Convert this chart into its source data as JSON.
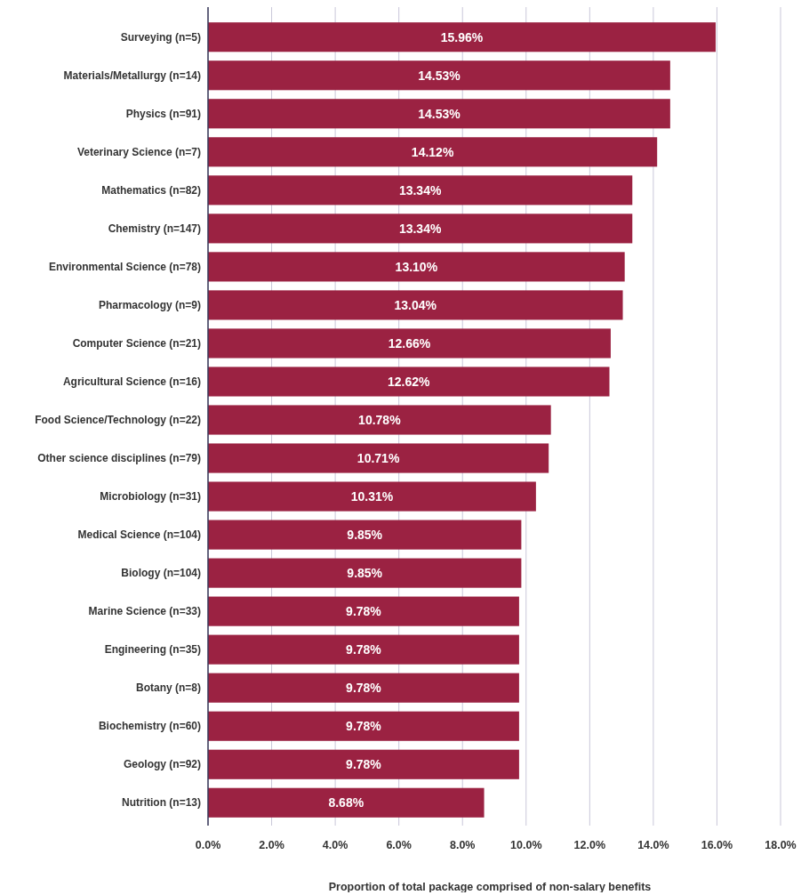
{
  "chart_data": {
    "type": "bar",
    "orientation": "horizontal",
    "xlabel": "Proportion of total package comprised of non-salary benefits",
    "categories": [
      "Surveying (n=5)",
      "Materials/Metallurgy (n=14)",
      "Physics (n=91)",
      "Veterinary Science (n=7)",
      "Mathematics (n=82)",
      "Chemistry (n=147)",
      "Environmental Science (n=78)",
      "Pharmacology (n=9)",
      "Computer Science (n=21)",
      "Agricultural Science (n=16)",
      "Food Science/Technology (n=22)",
      "Other science disciplines (n=79)",
      "Microbiology (n=31)",
      "Medical Science (n=104)",
      "Biology (n=104)",
      "Marine Science (n=33)",
      "Engineering (n=35)",
      "Botany (n=8)",
      "Biochemistry (n=60)",
      "Geology (n=92)",
      "Nutrition (n=13)"
    ],
    "values": [
      15.96,
      14.53,
      14.53,
      14.12,
      13.34,
      13.34,
      13.1,
      13.04,
      12.66,
      12.62,
      10.78,
      10.71,
      10.31,
      9.85,
      9.85,
      9.78,
      9.78,
      9.78,
      9.78,
      9.78,
      8.68
    ],
    "value_labels": [
      "15.96%",
      "14.53%",
      "14.53%",
      "14.12%",
      "13.34%",
      "13.34%",
      "13.10%",
      "13.04%",
      "12.66%",
      "12.62%",
      "10.78%",
      "10.71%",
      "10.31%",
      "9.85%",
      "9.85%",
      "9.78%",
      "9.78%",
      "9.78%",
      "9.78%",
      "9.78%",
      "8.68%"
    ],
    "color": "#9b2242",
    "xlim": [
      0,
      18
    ],
    "xticks": [
      {
        "value": 0,
        "label": "0.0%"
      },
      {
        "value": 2,
        "label": "2.0%"
      },
      {
        "value": 4,
        "label": "4.0%"
      },
      {
        "value": 6,
        "label": "6.0%"
      },
      {
        "value": 8,
        "label": "8.0%"
      },
      {
        "value": 10,
        "label": "10.0%"
      },
      {
        "value": 12,
        "label": "12.0%"
      },
      {
        "value": 14,
        "label": "14.0%"
      },
      {
        "value": 16,
        "label": "16.0%"
      },
      {
        "value": 18,
        "label": "18.0%"
      }
    ],
    "grid": "x"
  }
}
